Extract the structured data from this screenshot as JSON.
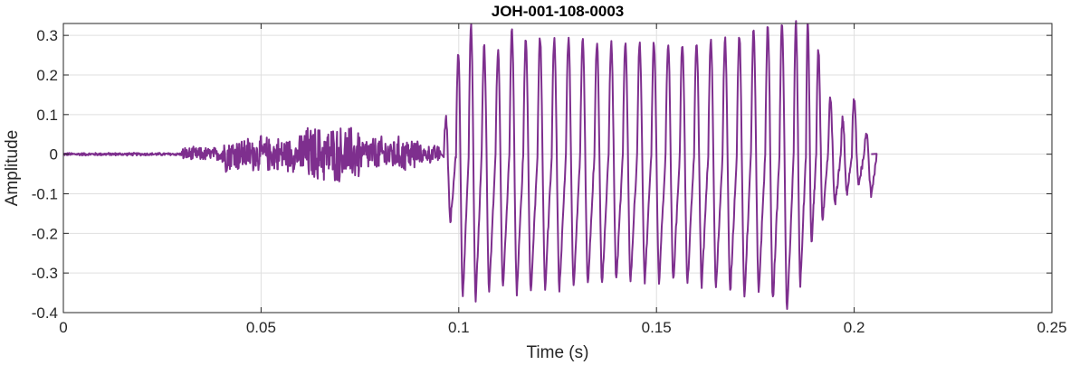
{
  "chart_data": {
    "type": "line",
    "title": "JOH-001-108-0003",
    "xlabel": "Time (s)",
    "ylabel": "Amplitude",
    "xlim": [
      0,
      0.25
    ],
    "ylim": [
      -0.4,
      0.33
    ],
    "xticks": [
      0,
      0.05,
      0.1,
      0.15,
      0.2,
      0.25
    ],
    "xtick_labels": [
      "0",
      "0.05",
      "0.1",
      "0.15",
      "0.2",
      "0.25"
    ],
    "yticks": [
      -0.4,
      -0.3,
      -0.2,
      -0.1,
      0,
      0.1,
      0.2,
      0.3
    ],
    "ytick_labels": [
      "-0.4",
      "-0.3",
      "-0.2",
      "-0.1",
      "0",
      "0.1",
      "0.2",
      "0.3"
    ],
    "grid": true,
    "line_color": "#7e2f8e",
    "series": [
      {
        "name": "",
        "segments": [
          {
            "x_start": 0.0,
            "x_end": 0.03,
            "pattern": "near-silence",
            "envelope": 0.004
          },
          {
            "x_start": 0.03,
            "x_end": 0.04,
            "pattern": "noise",
            "envelope": 0.02
          },
          {
            "x_start": 0.04,
            "x_end": 0.06,
            "pattern": "noise",
            "envelope": 0.05
          },
          {
            "x_start": 0.06,
            "x_end": 0.075,
            "pattern": "noise",
            "envelope": 0.08
          },
          {
            "x_start": 0.075,
            "x_end": 0.09,
            "pattern": "noise",
            "envelope": 0.05
          },
          {
            "x_start": 0.09,
            "x_end": 0.0955,
            "pattern": "noise",
            "envelope": 0.025
          },
          {
            "x_start": 0.0955,
            "x_end": 0.2045,
            "pattern": "voiced-oscillation",
            "period": 0.00356
          }
        ],
        "cycle_extremes": [
          {
            "x": 0.0962,
            "max": 0.09,
            "min": -0.17
          },
          {
            "x": 0.0993,
            "max": 0.26,
            "min": -0.36
          },
          {
            "x": 0.1025,
            "max": 0.33,
            "min": -0.37
          },
          {
            "x": 0.1058,
            "max": 0.27,
            "min": -0.35
          },
          {
            "x": 0.1093,
            "max": 0.26,
            "min": -0.34
          },
          {
            "x": 0.1128,
            "max": 0.31,
            "min": -0.35
          },
          {
            "x": 0.1163,
            "max": 0.29,
            "min": -0.35
          },
          {
            "x": 0.1199,
            "max": 0.29,
            "min": -0.34
          },
          {
            "x": 0.1235,
            "max": 0.29,
            "min": -0.34
          },
          {
            "x": 0.1271,
            "max": 0.29,
            "min": -0.34
          },
          {
            "x": 0.1307,
            "max": 0.29,
            "min": -0.33
          },
          {
            "x": 0.1343,
            "max": 0.28,
            "min": -0.33
          },
          {
            "x": 0.1379,
            "max": 0.28,
            "min": -0.32
          },
          {
            "x": 0.1415,
            "max": 0.28,
            "min": -0.32
          },
          {
            "x": 0.1451,
            "max": 0.28,
            "min": -0.32
          },
          {
            "x": 0.1487,
            "max": 0.28,
            "min": -0.32
          },
          {
            "x": 0.1523,
            "max": 0.28,
            "min": -0.32
          },
          {
            "x": 0.1559,
            "max": 0.28,
            "min": -0.33
          },
          {
            "x": 0.1595,
            "max": 0.28,
            "min": -0.33
          },
          {
            "x": 0.1631,
            "max": 0.29,
            "min": -0.34
          },
          {
            "x": 0.1667,
            "max": 0.29,
            "min": -0.35
          },
          {
            "x": 0.1703,
            "max": 0.3,
            "min": -0.36
          },
          {
            "x": 0.1739,
            "max": 0.31,
            "min": -0.35
          },
          {
            "x": 0.1775,
            "max": 0.32,
            "min": -0.37
          },
          {
            "x": 0.1811,
            "max": 0.33,
            "min": -0.4
          },
          {
            "x": 0.1847,
            "max": 0.33,
            "min": -0.33
          },
          {
            "x": 0.1878,
            "max": 0.33,
            "min": -0.23
          },
          {
            "x": 0.1904,
            "max": 0.26,
            "min": -0.17
          },
          {
            "x": 0.1934,
            "max": 0.14,
            "min": -0.13
          },
          {
            "x": 0.1966,
            "max": 0.09,
            "min": -0.1
          },
          {
            "x": 0.1994,
            "max": 0.14,
            "min": -0.08
          },
          {
            "x": 0.2025,
            "max": 0.05,
            "min": -0.1
          }
        ]
      }
    ]
  }
}
